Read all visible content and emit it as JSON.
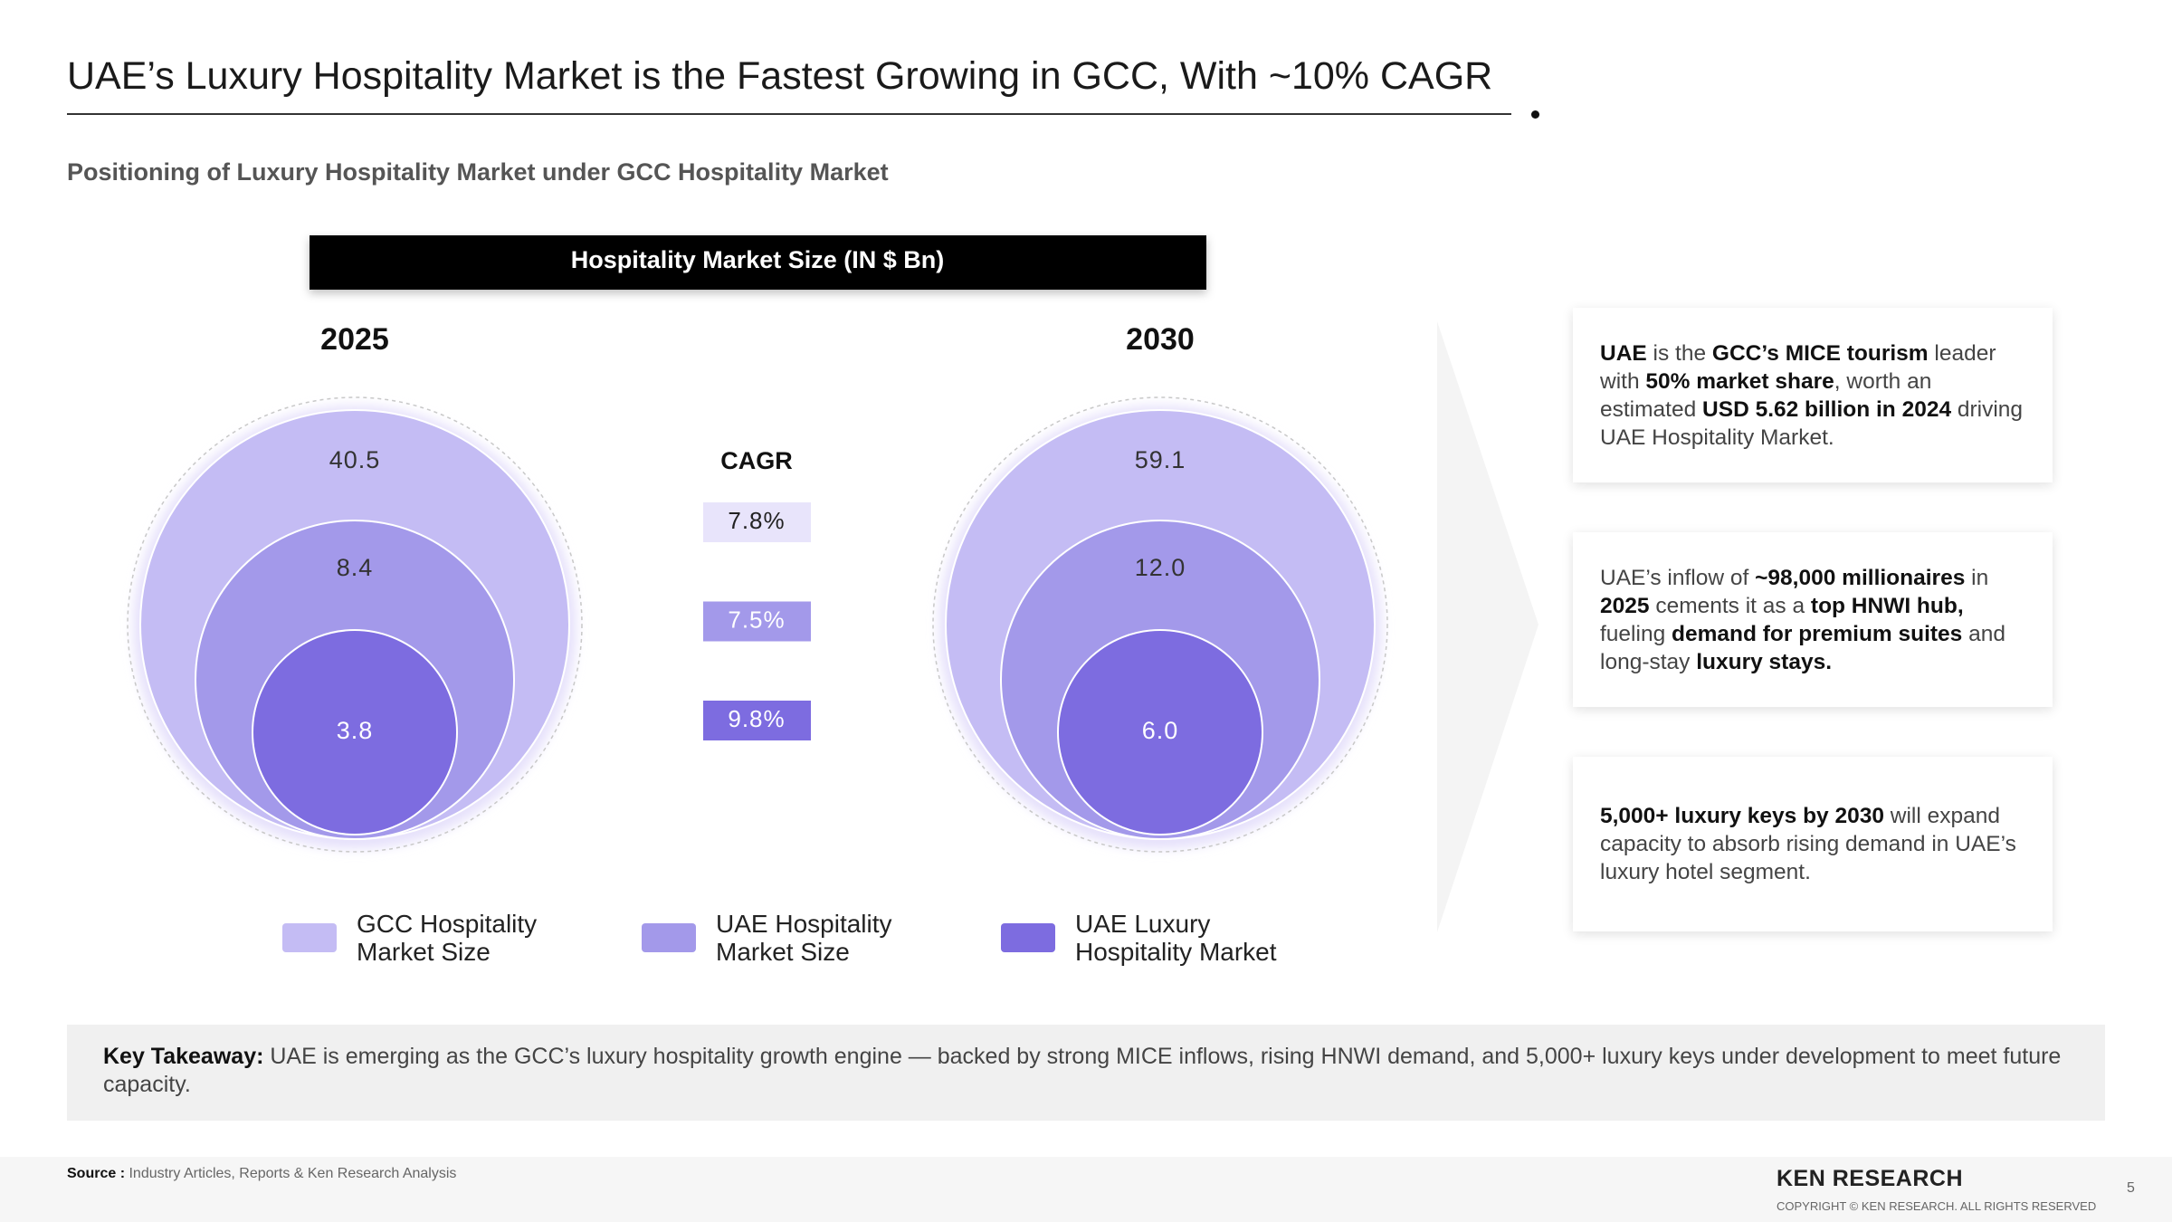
{
  "header": {
    "title": "UAE’s Luxury Hospitality Market is the Fastest Growing in GCC, With ~10% CAGR",
    "subtitle": "Positioning of Luxury Hospitality Market under GCC Hospitality Market"
  },
  "chart_data": {
    "type": "nested-circles",
    "title": "Hospitality Market Size (IN $ Bn)",
    "categories": [
      "2025",
      "2030"
    ],
    "series": [
      {
        "name": "GCC Hospitality Market Size",
        "color": "#c4bcf4",
        "values": [
          40.5,
          59.1
        ],
        "value_labels": [
          "40.5",
          "59.1"
        ]
      },
      {
        "name": "UAE Hospitality Market Size",
        "color": "#a399ea",
        "values": [
          8.4,
          12.0
        ],
        "value_labels": [
          "8.4",
          "12.0"
        ]
      },
      {
        "name": "UAE Luxury Hospitality Market",
        "color": "#7d6ce0",
        "values": [
          3.8,
          6.0
        ],
        "value_labels": [
          "3.8",
          "6.0"
        ]
      }
    ],
    "cagr": {
      "label": "CAGR",
      "values": [
        7.8,
        7.5,
        9.8
      ],
      "value_labels": [
        "7.8%",
        "7.5%",
        "9.8%"
      ],
      "colors": [
        "#e8e4fb",
        "#a399ea",
        "#7d6ce0"
      ],
      "text_colors": [
        "#222222",
        "#ffffff",
        "#ffffff"
      ]
    }
  },
  "cards": [
    [
      {
        "text": "UAE",
        "bold": true
      },
      {
        "text": " is the "
      },
      {
        "text": "GCC’s MICE tourism",
        "bold": true
      },
      {
        "text": " leader with "
      },
      {
        "text": "50% market share",
        "bold": true
      },
      {
        "text": ", worth an estimated "
      },
      {
        "text": "USD 5.62 billion in 2024",
        "bold": true
      },
      {
        "text": " driving UAE Hospitality Market."
      }
    ],
    [
      {
        "text": "UAE’s inflow of "
      },
      {
        "text": "~98,000 millionaires",
        "bold": true
      },
      {
        "text": " in "
      },
      {
        "text": "2025",
        "bold": true
      },
      {
        "text": " cements it as a "
      },
      {
        "text": "top HNWI hub,",
        "bold": true
      },
      {
        "text": " fueling "
      },
      {
        "text": "demand for premium suites",
        "bold": true
      },
      {
        "text": " and long-stay "
      },
      {
        "text": "luxury stays.",
        "bold": true
      }
    ],
    [
      {
        "text": "5,000+ luxury keys by 2030",
        "bold": true
      },
      {
        "text": " will expand capacity to absorb rising demand in UAE’s luxury hotel segment."
      }
    ]
  ],
  "takeaway": {
    "label": "Key Takeaway:",
    "text": "UAE is emerging as the GCC’s luxury hospitality growth engine — backed by strong MICE inflows, rising HNWI demand, and 5,000+ luxury keys under development to meet future capacity."
  },
  "footer": {
    "source_label": "Source :",
    "source": "Industry Articles, Reports & Ken Research Analysis",
    "logo": "KEN RESEARCH",
    "copyright": "COPYRIGHT © KEN RESEARCH. ALL RIGHTS RESERVED",
    "page": "5"
  }
}
